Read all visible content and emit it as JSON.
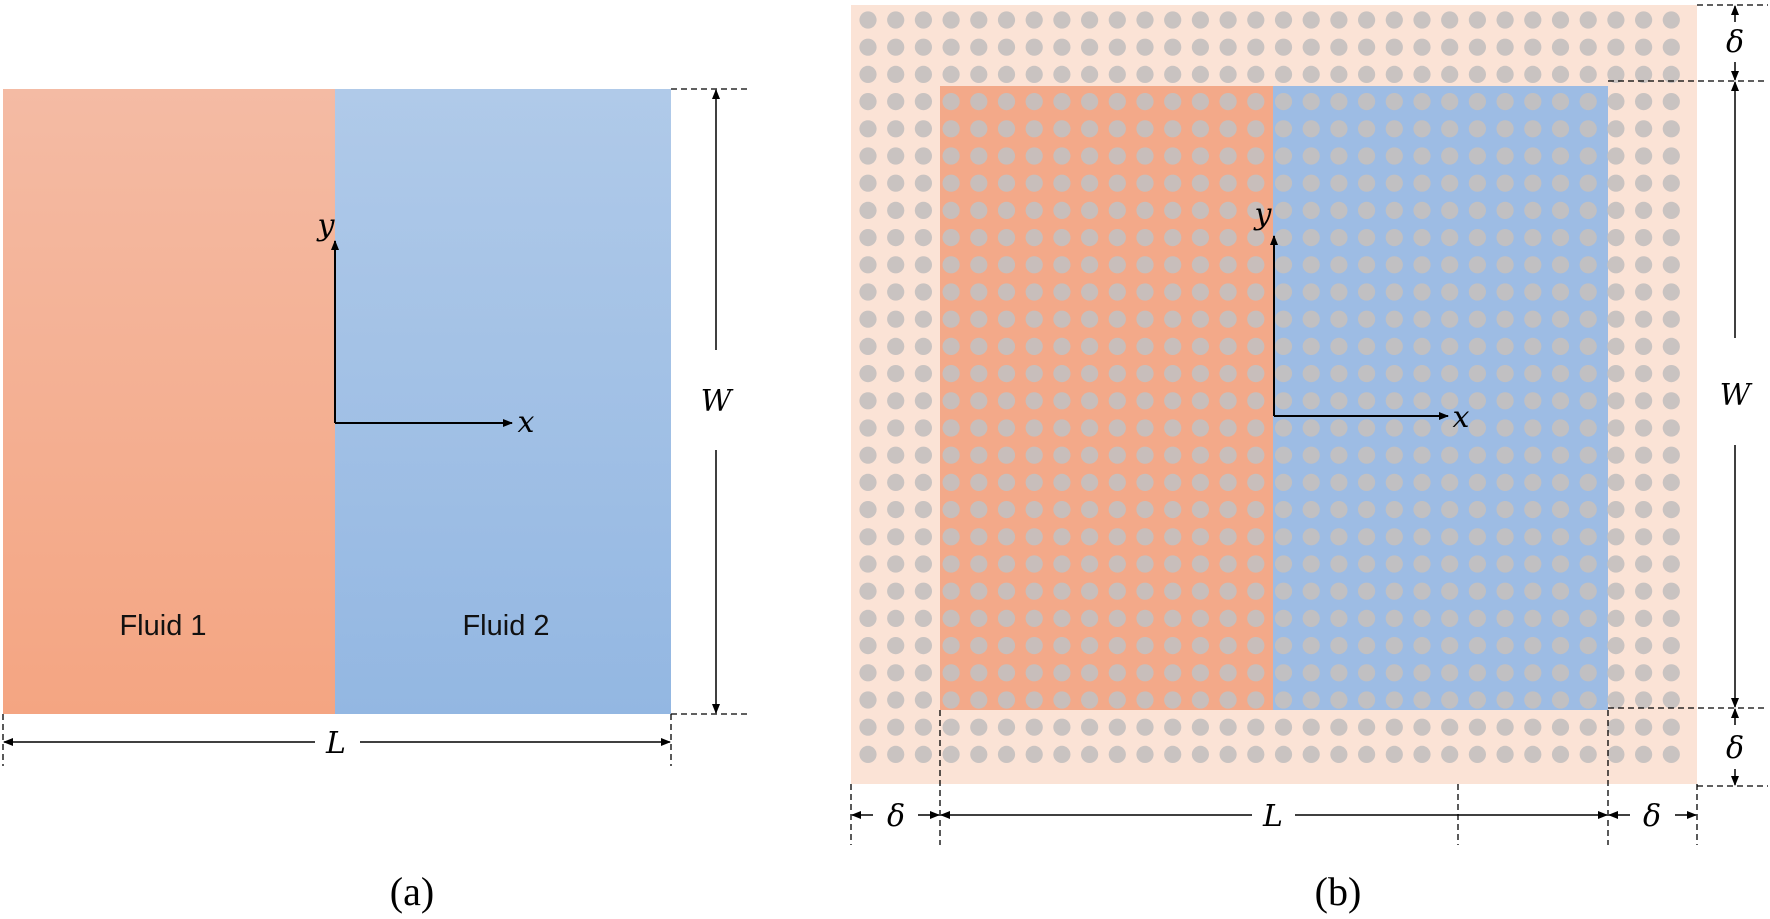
{
  "panel_a": {
    "fluid1_label": "Fluid 1",
    "fluid2_label": "Fluid 2",
    "axis_x": "x",
    "axis_y": "y",
    "width_label": "W",
    "length_label": "L",
    "caption": "(a)",
    "fluid1_color": "#f4a784",
    "fluid2_color": "#93b6e2"
  },
  "panel_b": {
    "axis_x": "x",
    "axis_y": "y",
    "width_label": "W",
    "length_label": "L",
    "delta_top": "δ",
    "delta_bottom": "δ",
    "delta_left": "δ",
    "delta_right": "δ",
    "caption": "(b)",
    "boundary_color": "#fbe3d6",
    "particle_color": "#c4c0bf"
  }
}
